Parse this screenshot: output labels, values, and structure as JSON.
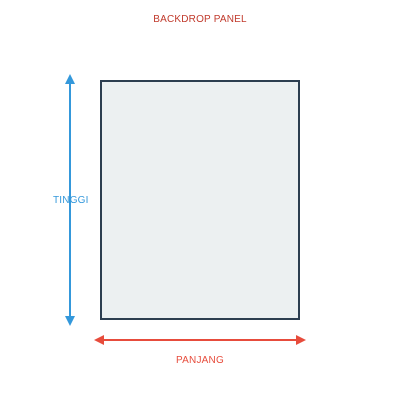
{
  "diagram": {
    "title": "BACKDROP PANEL",
    "height_label": "TINGGI",
    "length_label": "PANJANG"
  },
  "colors": {
    "title": "#c0392b",
    "panel_fill": "#ecf0f1",
    "panel_border": "#2c3e50",
    "height_arrow": "#3498db",
    "length_arrow": "#e74c3c"
  },
  "icons": {
    "height_arrow": "double-headed-vertical-arrow-icon",
    "length_arrow": "double-headed-horizontal-arrow-icon"
  }
}
